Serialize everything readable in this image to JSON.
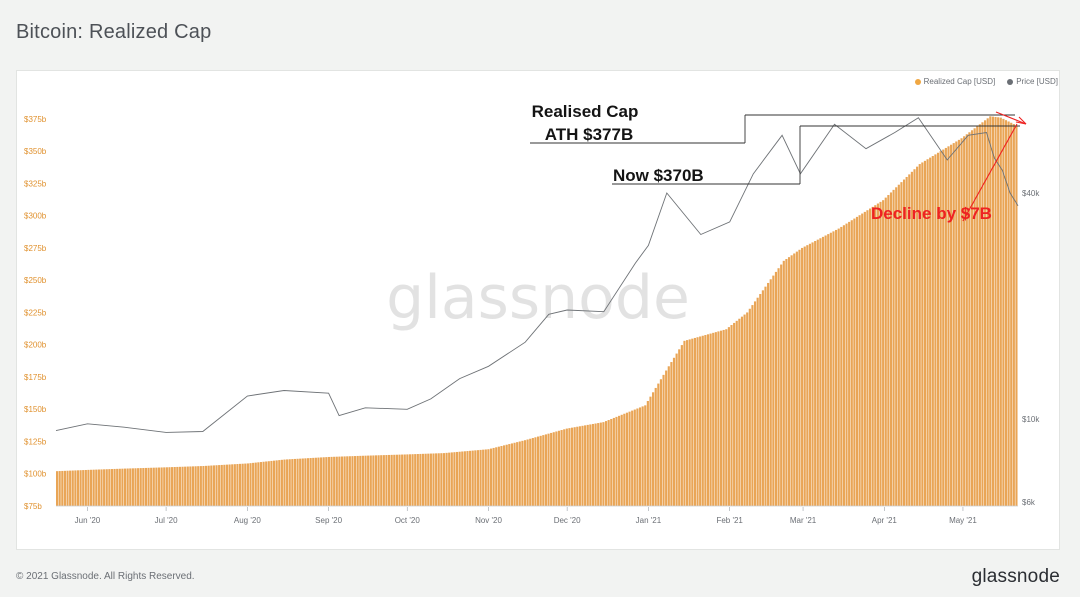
{
  "header": {
    "title": "Bitcoin: Realized Cap"
  },
  "legend": [
    {
      "label": "Realized Cap [USD]",
      "color": "#f0a742"
    },
    {
      "label": "Price [USD]",
      "color": "#6b6f75"
    }
  ],
  "footer": {
    "copyright": "© 2021 Glassnode. All Rights Reserved.",
    "logo": "glassnode"
  },
  "watermark": "glassnode",
  "annotations": {
    "ath_line1": "Realised Cap",
    "ath_line2": "ATH $377B",
    "now": "Now $370B",
    "decline": "Decline by $7B"
  },
  "colors": {
    "bar": "#e9a556",
    "price_line": "#6e7276",
    "decline": "#ee2222",
    "axis_left": "#e0912e"
  },
  "chart_data": {
    "type": "bar",
    "x_range": [
      "2020-05-20",
      "2021-05-22"
    ],
    "x_ticks": [
      "Jun '20",
      "Jul '20",
      "Aug '20",
      "Sep '20",
      "Oct '20",
      "Nov '20",
      "Dec '20",
      "Jan '21",
      "Feb '21",
      "Mar '21",
      "Apr '21",
      "May '21"
    ],
    "y_left": {
      "label": "Realized Cap [USD]",
      "range_b": [
        75,
        385
      ],
      "ticks": [
        "$75b",
        "$100b",
        "$125b",
        "$150b",
        "$175b",
        "$200b",
        "$225b",
        "$250b",
        "$275b",
        "$300b",
        "$325b",
        "$350b",
        "$375b"
      ]
    },
    "y_right": {
      "label": "Price [USD]",
      "scale": "log",
      "ticks": [
        "$6k",
        "$10k",
        "$40k"
      ]
    },
    "series": [
      {
        "name": "Realized Cap [USD]",
        "kind": "bar",
        "unit": "billion USD",
        "points": [
          [
            "2020-05-20",
            102
          ],
          [
            "2020-06-01",
            103
          ],
          [
            "2020-06-15",
            104
          ],
          [
            "2020-07-01",
            105
          ],
          [
            "2020-07-15",
            106
          ],
          [
            "2020-08-01",
            108
          ],
          [
            "2020-08-15",
            111
          ],
          [
            "2020-09-01",
            113
          ],
          [
            "2020-09-15",
            114
          ],
          [
            "2020-10-01",
            115
          ],
          [
            "2020-10-15",
            116
          ],
          [
            "2020-11-01",
            119
          ],
          [
            "2020-11-15",
            126
          ],
          [
            "2020-12-01",
            135
          ],
          [
            "2020-12-15",
            140
          ],
          [
            "2020-12-31",
            153
          ],
          [
            "2021-01-08",
            180
          ],
          [
            "2021-01-15",
            203
          ],
          [
            "2021-01-31",
            212
          ],
          [
            "2021-02-08",
            225
          ],
          [
            "2021-02-15",
            245
          ],
          [
            "2021-02-22",
            265
          ],
          [
            "2021-03-01",
            275
          ],
          [
            "2021-03-15",
            290
          ],
          [
            "2021-04-01",
            312
          ],
          [
            "2021-04-15",
            340
          ],
          [
            "2021-05-01",
            360
          ],
          [
            "2021-05-12",
            377
          ],
          [
            "2021-05-16",
            376
          ],
          [
            "2021-05-22",
            370
          ]
        ]
      },
      {
        "name": "Price [USD]",
        "kind": "line",
        "unit": "USD",
        "points": [
          [
            "2020-05-20",
            9300
          ],
          [
            "2020-06-01",
            9700
          ],
          [
            "2020-06-15",
            9500
          ],
          [
            "2020-07-01",
            9200
          ],
          [
            "2020-07-15",
            9250
          ],
          [
            "2020-08-01",
            11500
          ],
          [
            "2020-08-15",
            11900
          ],
          [
            "2020-09-01",
            11700
          ],
          [
            "2020-09-05",
            10200
          ],
          [
            "2020-09-15",
            10700
          ],
          [
            "2020-10-01",
            10600
          ],
          [
            "2020-10-10",
            11300
          ],
          [
            "2020-10-21",
            12800
          ],
          [
            "2020-11-01",
            13800
          ],
          [
            "2020-11-15",
            16000
          ],
          [
            "2020-11-24",
            19000
          ],
          [
            "2020-12-01",
            19500
          ],
          [
            "2020-12-15",
            19300
          ],
          [
            "2020-12-27",
            26000
          ],
          [
            "2021-01-01",
            29000
          ],
          [
            "2021-01-08",
            40000
          ],
          [
            "2021-01-21",
            31000
          ],
          [
            "2021-02-01",
            33500
          ],
          [
            "2021-02-10",
            45000
          ],
          [
            "2021-02-21",
            57000
          ],
          [
            "2021-02-28",
            45000
          ],
          [
            "2021-03-13",
            61000
          ],
          [
            "2021-03-25",
            52500
          ],
          [
            "2021-04-05",
            58000
          ],
          [
            "2021-04-14",
            63500
          ],
          [
            "2021-04-25",
            49000
          ],
          [
            "2021-05-03",
            57000
          ],
          [
            "2021-05-10",
            58000
          ],
          [
            "2021-05-13",
            49500
          ],
          [
            "2021-05-16",
            46000
          ],
          [
            "2021-05-19",
            40000
          ],
          [
            "2021-05-22",
            37000
          ]
        ]
      }
    ]
  }
}
